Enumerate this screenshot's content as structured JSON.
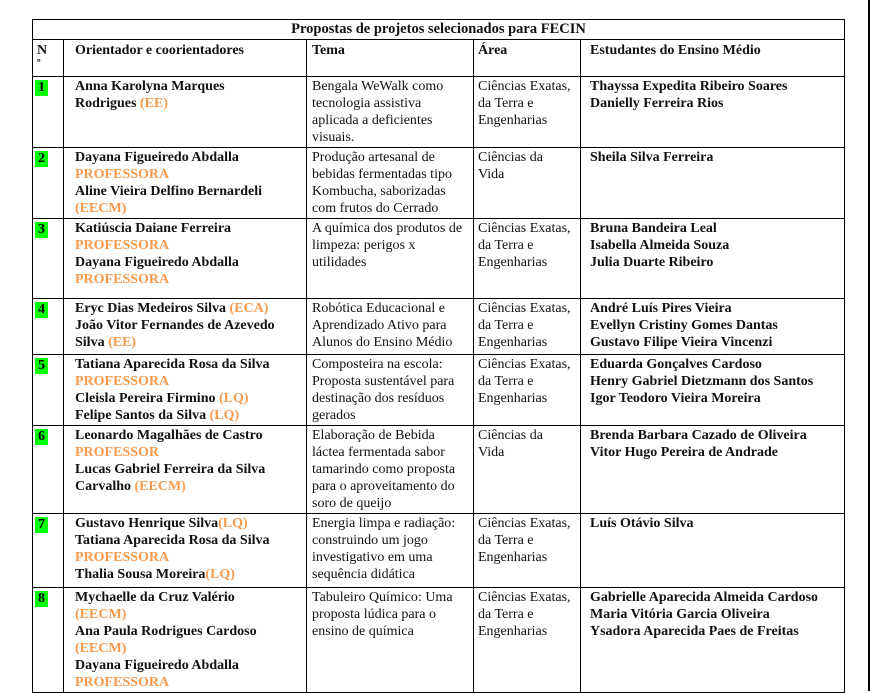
{
  "title": "Propostas de projetos selecionados para FECIN",
  "colors": {
    "row_number_highlight": "#00ff00",
    "accent_orange": "#f79a4d",
    "border": "#000000"
  },
  "header": {
    "col_num": "N",
    "col_num_sub": "º",
    "col_orientador": "Orientador e coorientadores",
    "col_tema": "Tema",
    "col_area": "Área",
    "col_estudantes": "Estudantes do Ensino Médio"
  },
  "rows": [
    {
      "num": "1",
      "orientadores": [
        [
          {
            "text": "Anna Karolyna Marques",
            "style": "black"
          }
        ],
        [
          {
            "text": "Rodrigues ",
            "style": "black"
          },
          {
            "text": "(EE)",
            "style": "orange"
          }
        ]
      ],
      "tema": "Bengala WeWalk como tecnologia assistiva aplicada a deficientes visuais.",
      "area": [
        "Ciências Exatas,",
        "da Terra e",
        "Engenharias"
      ],
      "estudantes": [
        "Thayssa Expedita Ribeiro Soares",
        "Danielly Ferreira Rios"
      ]
    },
    {
      "num": "2",
      "orientadores": [
        [
          {
            "text": "Dayana Figueiredo Abdalla",
            "style": "black"
          }
        ],
        [
          {
            "text": "PROFESSORA",
            "style": "orange"
          }
        ],
        [
          {
            "text": "Aline Vieira Delfino Bernardeli",
            "style": "black"
          }
        ],
        [
          {
            "text": "(EECM)",
            "style": "orange"
          }
        ]
      ],
      "tema": "Produção artesanal de bebidas fermentadas tipo Kombucha, saborizadas com frutos do Cerrado",
      "area": [
        "Ciências da",
        "Vida"
      ],
      "estudantes": [
        "Sheila Silva Ferreira"
      ]
    },
    {
      "num": "3",
      "orientadores": [
        [
          {
            "text": "Katiúscia Daiane Ferreira",
            "style": "black"
          }
        ],
        [
          {
            "text": "PROFESSORA",
            "style": "orange"
          }
        ],
        [
          {
            "text": "Dayana Figueiredo Abdalla",
            "style": "black"
          }
        ],
        [
          {
            "text": "PROFESSORA",
            "style": "orange"
          }
        ]
      ],
      "tema": "A química dos produtos de limpeza: perigos x utilidades",
      "area": [
        "Ciências Exatas,",
        "da Terra e",
        "Engenharias"
      ],
      "estudantes": [
        "Bruna Bandeira Leal",
        "Isabella Almeida Souza",
        "Julia Duarte Ribeiro"
      ]
    },
    {
      "num": "4",
      "orientadores": [
        [
          {
            "text": "Eryc Dias Medeiros Silva ",
            "style": "black"
          },
          {
            "text": "(ECA)",
            "style": "orange"
          }
        ],
        [
          {
            "text": "João Vitor Fernandes de Azevedo",
            "style": "black"
          }
        ],
        [
          {
            "text": "Silva ",
            "style": "black"
          },
          {
            "text": "(EE)",
            "style": "orange"
          }
        ]
      ],
      "tema": "Robótica Educacional e Aprendizado Ativo para Alunos do Ensino Médio",
      "area": [
        "Ciências Exatas,",
        "da Terra e",
        "Engenharias"
      ],
      "estudantes": [
        "André Luís Pires Vieira",
        "Evellyn Cristiny Gomes Dantas",
        "Gustavo Filipe Vieira Vincenzi"
      ]
    },
    {
      "num": "5",
      "orientadores": [
        [
          {
            "text": "Tatiana Aparecida Rosa da Silva",
            "style": "black"
          }
        ],
        [
          {
            "text": "PROFESSORA",
            "style": "orange"
          }
        ],
        [
          {
            "text": "Cleisla Pereira Firmino ",
            "style": "black"
          },
          {
            "text": "(LQ)",
            "style": "orange"
          }
        ],
        [
          {
            "text": "Felipe Santos da Silva ",
            "style": "black"
          },
          {
            "text": "(LQ)",
            "style": "orange"
          }
        ]
      ],
      "tema": "Composteira na escola: Proposta sustentável para destinação dos resíduos gerados",
      "area": [
        "Ciências Exatas,",
        "da Terra e",
        "Engenharias"
      ],
      "estudantes": [
        "Eduarda Gonçalves Cardoso",
        "Henry Gabriel Dietzmann dos Santos",
        "Igor Teodoro Vieira Moreira"
      ]
    },
    {
      "num": "6",
      "orientadores": [
        [
          {
            "text": "Leonardo Magalhães de Castro",
            "style": "black"
          }
        ],
        [
          {
            "text": "PROFESSOR",
            "style": "orange"
          }
        ],
        [
          {
            "text": "Lucas Gabriel Ferreira da Silva",
            "style": "black"
          }
        ],
        [
          {
            "text": "Carvalho ",
            "style": "black"
          },
          {
            "text": "(EECM)",
            "style": "orange"
          }
        ]
      ],
      "tema": "Elaboração de Bebida láctea fermentada sabor tamarindo como proposta para o aproveitamento do soro de queijo",
      "area": [
        "Ciências da",
        "Vida"
      ],
      "estudantes": [
        "Brenda Barbara Cazado de Oliveira",
        "Vitor Hugo Pereira de Andrade"
      ]
    },
    {
      "num": "7",
      "orientadores": [
        [
          {
            "text": "Gustavo Henrique Silva",
            "style": "black"
          },
          {
            "text": "(LQ)",
            "style": "orange"
          }
        ],
        [
          {
            "text": "Tatiana Aparecida Rosa da Silva",
            "style": "black"
          }
        ],
        [
          {
            "text": "PROFESSORA",
            "style": "orange"
          }
        ],
        [
          {
            "text": "Thalia Sousa Moreira",
            "style": "black"
          },
          {
            "text": "(LQ)",
            "style": "orange"
          }
        ]
      ],
      "tema": "Energia limpa e radiação: construindo um jogo investigativo em uma sequência didática",
      "area": [
        "Ciências Exatas,",
        "da Terra e",
        "Engenharias"
      ],
      "estudantes": [
        "Luís Otávio Silva"
      ]
    },
    {
      "num": "8",
      "orientadores": [
        [
          {
            "text": "Mychaelle da Cruz Valério",
            "style": "black"
          }
        ],
        [
          {
            "text": "(EECM)",
            "style": "orange"
          }
        ],
        [
          {
            "text": "Ana Paula Rodrigues Cardoso",
            "style": "black"
          }
        ],
        [
          {
            "text": "(EECM)",
            "style": "orange"
          }
        ],
        [
          {
            "text": "Dayana Figueiredo Abdalla",
            "style": "black"
          }
        ],
        [
          {
            "text": "PROFESSORA",
            "style": "orange"
          }
        ]
      ],
      "tema": "Tabuleiro Químico: Uma proposta lúdica para o ensino de química",
      "area": [
        "Ciências Exatas,",
        "da Terra e",
        "Engenharias"
      ],
      "estudantes": [
        "Gabrielle Aparecida Almeida Cardoso",
        "Maria Vitória Garcia Oliveira",
        "Ysadora Aparecida Paes de Freitas"
      ]
    }
  ]
}
